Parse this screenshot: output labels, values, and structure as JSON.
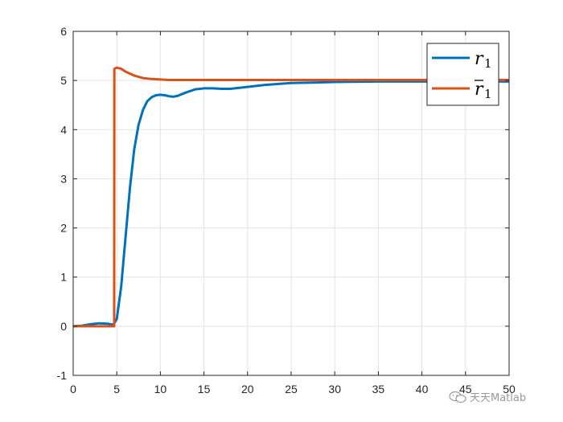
{
  "chart_data": {
    "type": "line",
    "xlim": [
      0,
      50
    ],
    "ylim": [
      -1,
      6
    ],
    "xticks": [
      0,
      5,
      10,
      15,
      20,
      25,
      30,
      35,
      40,
      45,
      50
    ],
    "yticks": [
      -1,
      0,
      1,
      2,
      3,
      4,
      5,
      6
    ],
    "grid": true,
    "legend_position": "top-right",
    "series": [
      {
        "name": "r",
        "subscript": "1",
        "color": "#0072BD",
        "x": [
          0,
          1,
          2,
          3,
          4,
          4.6,
          5,
          5.5,
          6,
          6.5,
          7,
          7.5,
          8,
          8.5,
          9,
          9.5,
          10,
          10.5,
          11,
          11.5,
          12,
          13,
          14,
          15,
          16,
          17,
          18,
          20,
          22,
          25,
          28,
          30,
          35,
          40,
          45,
          50
        ],
        "y": [
          0,
          0.01,
          0.04,
          0.06,
          0.05,
          0.03,
          0.15,
          0.8,
          1.8,
          2.8,
          3.6,
          4.1,
          4.4,
          4.58,
          4.66,
          4.7,
          4.71,
          4.7,
          4.68,
          4.67,
          4.69,
          4.76,
          4.82,
          4.84,
          4.84,
          4.83,
          4.83,
          4.87,
          4.91,
          4.95,
          4.96,
          4.97,
          4.98,
          4.98,
          4.98,
          4.98
        ]
      },
      {
        "name": "r",
        "subscript": "1",
        "overbar": true,
        "color": "#D95319",
        "x": [
          0,
          4.7,
          4.72,
          5,
          5.5,
          6,
          7,
          8,
          9,
          10,
          11,
          12,
          15,
          20,
          25,
          30,
          35,
          40,
          45,
          50
        ],
        "y": [
          0,
          0,
          5.24,
          5.26,
          5.24,
          5.18,
          5.1,
          5.05,
          5.03,
          5.02,
          5.01,
          5.01,
          5.01,
          5.01,
          5.01,
          5.01,
          5.01,
          5.01,
          5.01,
          5.01
        ]
      }
    ]
  },
  "watermark": {
    "icon": "wechat-icon",
    "text": "天天Matlab"
  }
}
